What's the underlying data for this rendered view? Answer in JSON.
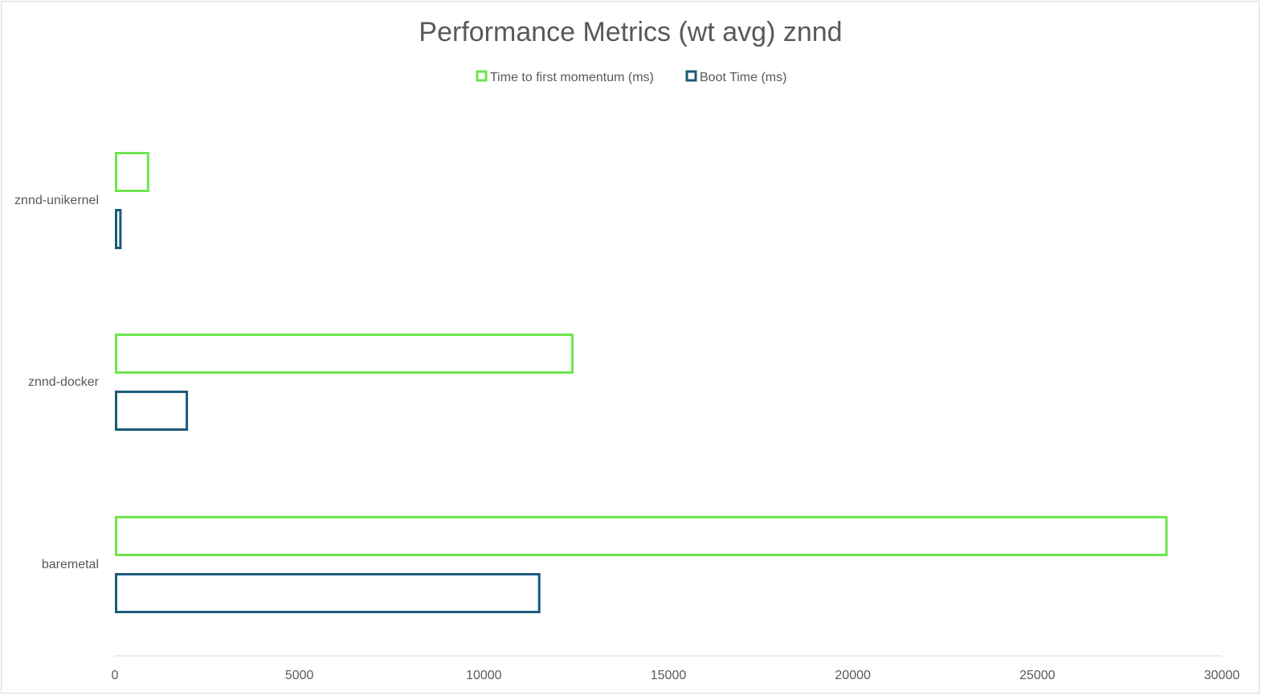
{
  "chart_data": {
    "type": "bar",
    "orientation": "horizontal",
    "title": "Performance Metrics (wt avg) znnd",
    "categories": [
      "znnd-unikernel",
      "znnd-docker",
      "baremetal"
    ],
    "series": [
      {
        "name": "Time to first momentum (ms)",
        "color": "#6ce64c",
        "values": [
          900,
          12400,
          28500
        ]
      },
      {
        "name": "Boot Time (ms)",
        "color": "#1a5a7a",
        "values": [
          150,
          1950,
          11500
        ]
      }
    ],
    "xlim": [
      0,
      30000
    ],
    "xticks": [
      "0",
      "5000",
      "10000",
      "15000",
      "20000",
      "25000",
      "30000"
    ],
    "xlabel": "",
    "ylabel": "",
    "grid": false,
    "legend_position": "top"
  }
}
